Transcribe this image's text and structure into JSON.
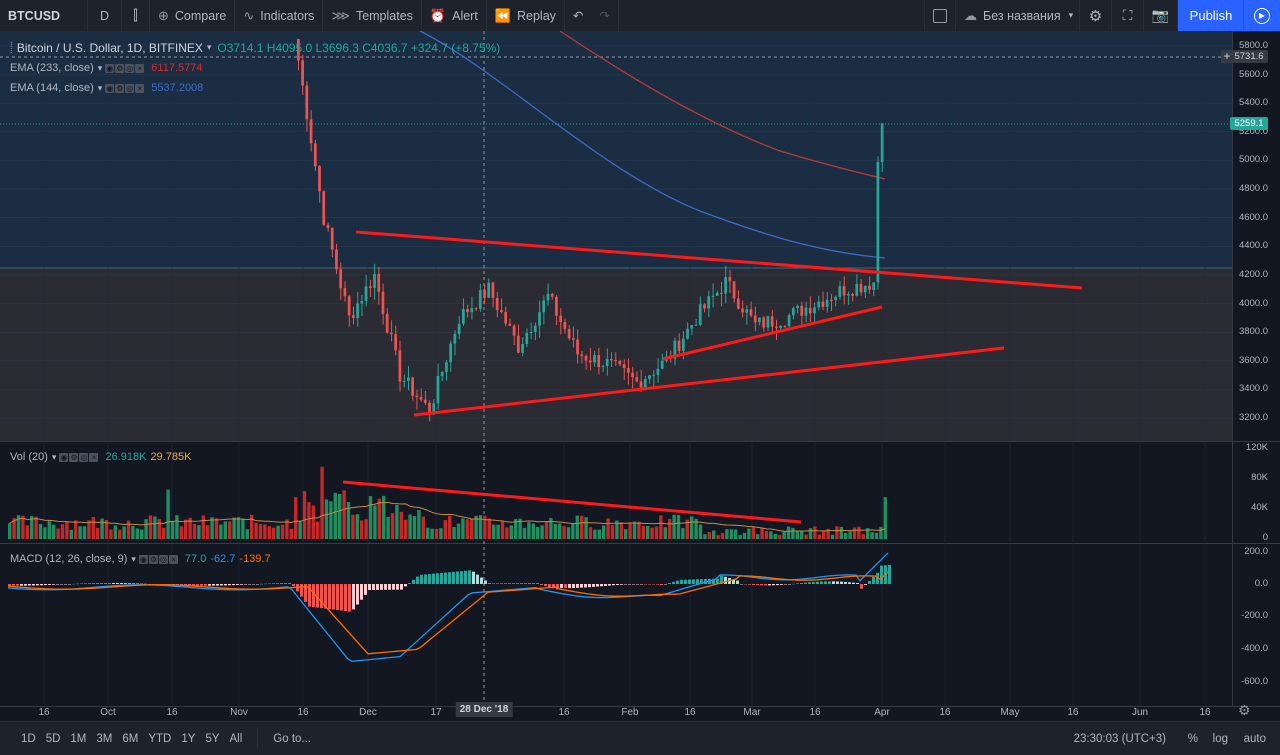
{
  "toolbar": {
    "symbol": "BTCUSD",
    "interval": "D",
    "compare": "Compare",
    "indicators": "Indicators",
    "templates": "Templates",
    "alert": "Alert",
    "replay": "Replay",
    "layout_name": "Без названия",
    "publish": "Publish"
  },
  "main_legend": {
    "title": "Bitcoin / U.S. Dollar, 1D, BITFINEX",
    "ohlc": "O3714.1 H4095.0 L3696.3 C4036.7 +324.7 (+8.75%)"
  },
  "ema233": {
    "label": "EMA (233, close)",
    "value": "6117.5774",
    "color": "#d32f2f"
  },
  "ema144": {
    "label": "EMA (144, close)",
    "value": "5537.2008",
    "color": "#2962ff"
  },
  "vol": {
    "label": "Vol (20)",
    "v1": "26.918K",
    "v2": "29.785K"
  },
  "macd": {
    "label": "MACD (12, 26, close, 9)",
    "v1": "77.0",
    "v2": "-62.7",
    "v3": "-139.7"
  },
  "price_axis": {
    "ticks": [
      "5800.0",
      "5600.0",
      "5400.0",
      "5200.0",
      "5000.0",
      "4800.0",
      "4600.0",
      "4400.0",
      "4200.0",
      "4000.0",
      "3800.0",
      "3600.0",
      "3400.0",
      "3200.0"
    ],
    "crosshair_price": "5731.6",
    "last_price": "5259.1"
  },
  "vol_axis": {
    "ticks": [
      "120K",
      "80K",
      "40K",
      "0"
    ]
  },
  "macd_axis": {
    "ticks": [
      "200.0",
      "0.0",
      "-200.0",
      "-400.0",
      "-600.0"
    ]
  },
  "time_axis": {
    "labels": [
      "16",
      "Oct",
      "16",
      "Nov",
      "16",
      "Dec",
      "17",
      "28 Dec '18",
      "16",
      "Feb",
      "16",
      "Mar",
      "16",
      "Apr",
      "16",
      "May",
      "16",
      "Jun",
      "16"
    ]
  },
  "bottom": {
    "ranges": [
      "1D",
      "5D",
      "1M",
      "3M",
      "6M",
      "YTD",
      "1Y",
      "5Y",
      "All"
    ],
    "goto": "Go to...",
    "clock": "23:30:03 (UTC+3)",
    "percent": "%",
    "log": "log",
    "auto": "auto"
  },
  "chart_data": {
    "type": "candlestick",
    "title": "Bitcoin / U.S. Dollar, 1D, BITFINEX",
    "ylim": [
      3100,
      5900
    ],
    "trendlines_color": "#ff1a1a",
    "price_path": [
      {
        "x": "Nov 14",
        "y": 5700
      },
      {
        "x": "Nov 20",
        "y": 4600
      },
      {
        "x": "Nov 25",
        "y": 3900
      },
      {
        "x": "Dec 1",
        "y": 4200
      },
      {
        "x": "Dec 7",
        "y": 3500
      },
      {
        "x": "Dec 15",
        "y": 3250
      },
      {
        "x": "Dec 20",
        "y": 3900
      },
      {
        "x": "Dec 24",
        "y": 4100
      },
      {
        "x": "Dec 28",
        "y": 3700
      },
      {
        "x": "Jan 6",
        "y": 4050
      },
      {
        "x": "Jan 10",
        "y": 3650
      },
      {
        "x": "Jan 20",
        "y": 3580
      },
      {
        "x": "Feb 1",
        "y": 3450
      },
      {
        "x": "Feb 8",
        "y": 3600
      },
      {
        "x": "Feb 18",
        "y": 3900
      },
      {
        "x": "Feb 24",
        "y": 4150
      },
      {
        "x": "Mar 1",
        "y": 3850
      },
      {
        "x": "Mar 10",
        "y": 3900
      },
      {
        "x": "Mar 20",
        "y": 4000
      },
      {
        "x": "Mar 30",
        "y": 4100
      },
      {
        "x": "Apr 1",
        "y": 4150
      },
      {
        "x": "Apr 2",
        "y": 5000
      },
      {
        "x": "Apr 3",
        "y": 5259
      }
    ]
  }
}
